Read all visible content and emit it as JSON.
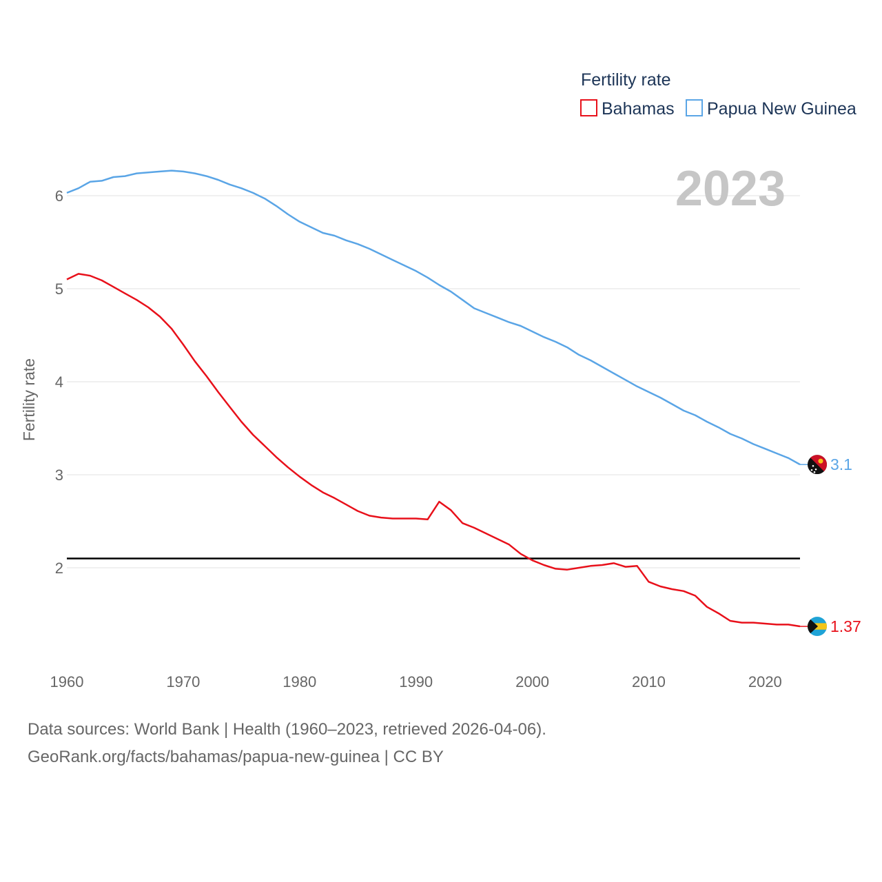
{
  "chart_data": {
    "type": "line",
    "title": "",
    "year_label": "2023",
    "ylabel": "Fertility rate",
    "xlabel": "",
    "xlim": [
      1960,
      2023
    ],
    "ylim": [
      1,
      6.6
    ],
    "x_ticks": [
      1960,
      1970,
      1980,
      1990,
      2000,
      2010,
      2020
    ],
    "y_ticks": [
      2,
      3,
      4,
      5,
      6
    ],
    "legend": {
      "title": "Fertility rate",
      "position": "top-right"
    },
    "reference_line": {
      "value": 2.1
    },
    "x": [
      1960,
      1961,
      1962,
      1963,
      1964,
      1965,
      1966,
      1967,
      1968,
      1969,
      1970,
      1971,
      1972,
      1973,
      1974,
      1975,
      1976,
      1977,
      1978,
      1979,
      1980,
      1981,
      1982,
      1983,
      1984,
      1985,
      1986,
      1987,
      1988,
      1989,
      1990,
      1991,
      1992,
      1993,
      1994,
      1995,
      1996,
      1997,
      1998,
      1999,
      2000,
      2001,
      2002,
      2003,
      2004,
      2005,
      2006,
      2007,
      2008,
      2009,
      2010,
      2011,
      2012,
      2013,
      2014,
      2015,
      2016,
      2017,
      2018,
      2019,
      2020,
      2021,
      2022,
      2023
    ],
    "series": [
      {
        "name": "Bahamas",
        "color": "#e8101a",
        "end_label": "1.37",
        "flag": "bahamas-flag",
        "values": [
          5.1,
          5.16,
          5.14,
          5.09,
          5.02,
          4.95,
          4.88,
          4.8,
          4.7,
          4.57,
          4.4,
          4.22,
          4.06,
          3.89,
          3.73,
          3.57,
          3.43,
          3.31,
          3.19,
          3.08,
          2.98,
          2.89,
          2.81,
          2.75,
          2.68,
          2.61,
          2.56,
          2.54,
          2.53,
          2.53,
          2.53,
          2.52,
          2.71,
          2.62,
          2.48,
          2.43,
          2.37,
          2.31,
          2.25,
          2.15,
          2.08,
          2.03,
          1.99,
          1.98,
          2.0,
          2.02,
          2.03,
          2.05,
          2.01,
          2.02,
          1.85,
          1.8,
          1.77,
          1.75,
          1.7,
          1.58,
          1.51,
          1.43,
          1.41,
          1.41,
          1.4,
          1.39,
          1.39,
          1.37
        ]
      },
      {
        "name": "Papua New Guinea",
        "color": "#5aa5e6",
        "end_label": "3.1",
        "flag": "papua-new-guinea-flag",
        "values": [
          6.03,
          6.08,
          6.15,
          6.16,
          6.2,
          6.21,
          6.24,
          6.25,
          6.26,
          6.27,
          6.26,
          6.24,
          6.21,
          6.17,
          6.12,
          6.08,
          6.03,
          5.97,
          5.89,
          5.8,
          5.72,
          5.66,
          5.6,
          5.57,
          5.52,
          5.48,
          5.43,
          5.37,
          5.31,
          5.25,
          5.19,
          5.12,
          5.04,
          4.97,
          4.88,
          4.79,
          4.74,
          4.69,
          4.64,
          4.6,
          4.54,
          4.48,
          4.43,
          4.37,
          4.29,
          4.23,
          4.16,
          4.09,
          4.02,
          3.95,
          3.89,
          3.83,
          3.76,
          3.69,
          3.64,
          3.57,
          3.51,
          3.44,
          3.39,
          3.33,
          3.28,
          3.23,
          3.18,
          3.11
        ]
      }
    ]
  },
  "footer": {
    "sources": "Data sources: World Bank | Health (1960–2023, retrieved 2026-04-06).",
    "credit": "GeoRank.org/facts/bahamas/papua-new-guinea | CC BY"
  }
}
